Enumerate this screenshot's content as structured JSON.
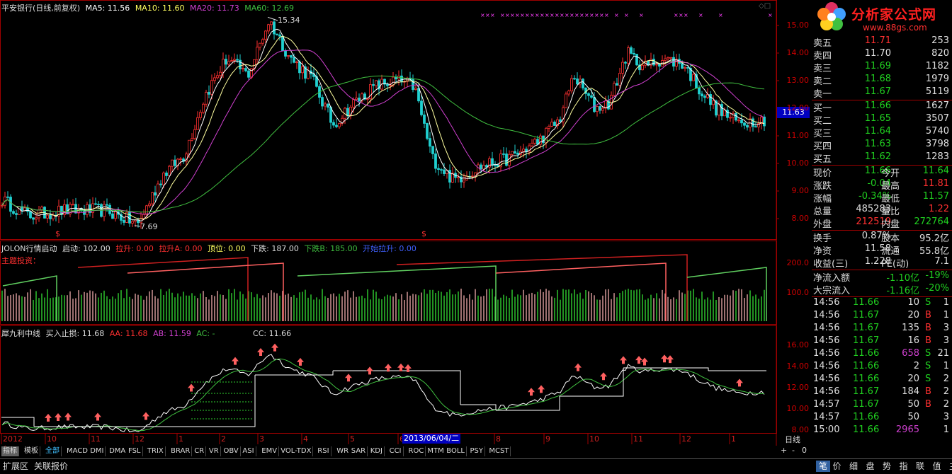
{
  "header": {
    "title": "平安银行(日线,前复权)",
    "ma5": "MA5: 11.56",
    "ma10": "MA10: 11.60",
    "ma20": "MA20: 11.73",
    "ma60": "MA60: 12.69"
  },
  "colors": {
    "up": "#ff3030",
    "down": "#20c020",
    "ma5": "#ffffff",
    "ma10": "#ffff60",
    "ma20": "#d040d0",
    "ma60": "#40c040",
    "axis": "#a00000"
  },
  "main_chart": {
    "high_label": "15.34",
    "low_label": "7.69",
    "price_tag": "11.63",
    "y_ticks": [
      "15.00",
      "14.00",
      "13.00",
      "12.00",
      "11.00",
      "10.00",
      "9.00",
      "8.00"
    ]
  },
  "panel2": {
    "title": "JOLON行情启动",
    "qidong": "启动: 102.00",
    "lasheng": "拉升: 0.00",
    "lashengA": "拉升A: 0.00",
    "dingwei": "顶位: 0.00",
    "xiadie": "下跌: 187.00",
    "xiadieB": "下跌B: 185.00",
    "kaishi": "开始拉升: 0.00",
    "sub": "主题投资：",
    "y_ticks": [
      "200.0",
      "100.0"
    ]
  },
  "panel3": {
    "title": "犀九利中线",
    "stop": "买入止损: 11.68",
    "aa": "AA: 11.68",
    "ab": "AB: 11.59",
    "ac": "AC: -",
    "cc": "CC: 11.66",
    "y_ticks": [
      "16.00",
      "14.00",
      "12.00",
      "10.00",
      "8.00"
    ]
  },
  "x_axis": {
    "labels": [
      "2012年",
      "10",
      "11",
      "12",
      "1",
      "2",
      "3",
      "4",
      "5",
      "6",
      "7",
      "8",
      "9",
      "10",
      "11",
      "12",
      "1"
    ],
    "cursor_date": "2013/06/04/二",
    "period": "日线"
  },
  "tabs": [
    "指标",
    "模板",
    "全部",
    "MACD",
    "DMI",
    "DMA",
    "FSL",
    "TRIX",
    "BRAR",
    "CR",
    "VR",
    "OBV",
    "ASI",
    "EMV",
    "VOL-TDX",
    "RSI",
    "WR",
    "SAR",
    "KDJ",
    "CCI",
    "ROC",
    "MTM",
    "BOLL",
    "PSY",
    "MCST"
  ],
  "zoom": {
    "plus": "+",
    "minus": "-",
    "zero": "0"
  },
  "bottom_left": [
    "扩展区",
    "关联报价"
  ],
  "bottom_right": [
    "笔",
    "价",
    "细",
    "盘",
    "势",
    "指",
    "联",
    "值",
    "主"
  ],
  "logo": {
    "text": "分析家公式网",
    "url": "www.88gs.com"
  },
  "orderbook": {
    "asks": [
      {
        "label": "卖五",
        "price": "11.71",
        "vol": "253"
      },
      {
        "label": "卖四",
        "price": "11.70",
        "vol": "820"
      },
      {
        "label": "卖三",
        "price": "11.69",
        "vol": "1182"
      },
      {
        "label": "卖二",
        "price": "11.68",
        "vol": "1979"
      },
      {
        "label": "卖一",
        "price": "11.67",
        "vol": "5119"
      }
    ],
    "bids": [
      {
        "label": "买一",
        "price": "11.66",
        "vol": "1627"
      },
      {
        "label": "买二",
        "price": "11.65",
        "vol": "3507"
      },
      {
        "label": "买三",
        "price": "11.64",
        "vol": "5740"
      },
      {
        "label": "买四",
        "price": "11.63",
        "vol": "3798"
      },
      {
        "label": "买五",
        "price": "11.62",
        "vol": "1283"
      }
    ]
  },
  "quote": [
    {
      "l1": "现价",
      "v1": "11.66",
      "l2": "今开",
      "v2": "11.64",
      "c1": "#20d020",
      "c2": "#20d020"
    },
    {
      "l1": "涨跌",
      "v1": "-0.04",
      "l2": "最高",
      "v2": "11.81",
      "c1": "#20d020",
      "c2": "#ff3030"
    },
    {
      "l1": "涨幅",
      "v1": "-0.34%",
      "l2": "最低",
      "v2": "11.57",
      "c1": "#20d020",
      "c2": "#20d020"
    },
    {
      "l1": "总量",
      "v1": "485283",
      "l2": "量比",
      "v2": "1.22",
      "c1": "#e0e0e0",
      "c2": "#ff3030"
    },
    {
      "l1": "外盘",
      "v1": "212519",
      "l2": "内盘",
      "v2": "272764",
      "c1": "#ff3030",
      "c2": "#20d020"
    }
  ],
  "fundamentals": [
    {
      "l1": "换手",
      "v1": "0.87%",
      "l2": "股本",
      "v2": "95.2亿"
    },
    {
      "l1": "净资",
      "v1": "11.58",
      "l2": "流通",
      "v2": "55.8亿"
    },
    {
      "l1": "收益(三)",
      "v1": "1.228",
      "l2": "PE(动)",
      "v2": "7.1"
    }
  ],
  "flows": [
    {
      "label": "净流入额",
      "value": "-1.10亿",
      "pct": "-19%"
    },
    {
      "label": "大宗流入",
      "value": "-1.16亿",
      "pct": "-20%"
    }
  ],
  "ticks": [
    {
      "t": "14:56",
      "p": "11.66",
      "v": "10",
      "d": "S",
      "n": "1",
      "pc": "#20d020",
      "vc": "#e0e0e0",
      "dc": "#20d020"
    },
    {
      "t": "14:56",
      "p": "11.67",
      "v": "20",
      "d": "B",
      "n": "1",
      "pc": "#20d020",
      "vc": "#e0e0e0",
      "dc": "#ff3030"
    },
    {
      "t": "14:56",
      "p": "11.67",
      "v": "135",
      "d": "B",
      "n": "3",
      "pc": "#20d020",
      "vc": "#e0e0e0",
      "dc": "#ff3030"
    },
    {
      "t": "14:56",
      "p": "11.67",
      "v": "16",
      "d": "B",
      "n": "3",
      "pc": "#20d020",
      "vc": "#e0e0e0",
      "dc": "#ff3030"
    },
    {
      "t": "14:56",
      "p": "11.66",
      "v": "658",
      "d": "S",
      "n": "21",
      "pc": "#20d020",
      "vc": "#d040d0",
      "dc": "#20d020"
    },
    {
      "t": "14:56",
      "p": "11.66",
      "v": "2",
      "d": "S",
      "n": "1",
      "pc": "#20d020",
      "vc": "#e0e0e0",
      "dc": "#20d020"
    },
    {
      "t": "14:56",
      "p": "11.66",
      "v": "20",
      "d": "S",
      "n": "2",
      "pc": "#20d020",
      "vc": "#e0e0e0",
      "dc": "#20d020"
    },
    {
      "t": "14:56",
      "p": "11.67",
      "v": "184",
      "d": "B",
      "n": "2",
      "pc": "#20d020",
      "vc": "#e0e0e0",
      "dc": "#ff3030"
    },
    {
      "t": "14:57",
      "p": "11.67",
      "v": "50",
      "d": "B",
      "n": "2",
      "pc": "#20d020",
      "vc": "#e0e0e0",
      "dc": "#ff3030"
    },
    {
      "t": "14:57",
      "p": "11.66",
      "v": "50",
      "d": "",
      "n": "3",
      "pc": "#20d020",
      "vc": "#e0e0e0",
      "dc": "#20d020"
    },
    {
      "t": "15:00",
      "p": "11.66",
      "v": "2965",
      "d": "",
      "n": "1",
      "pc": "#20d020",
      "vc": "#d040d0",
      "dc": "#20d020"
    }
  ]
}
